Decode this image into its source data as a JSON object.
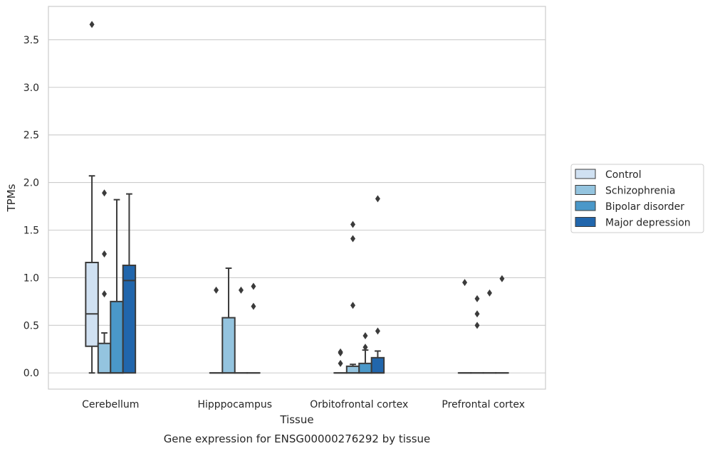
{
  "chart_data": {
    "type": "box",
    "caption": "Gene expression for ENSG00000276292 by tissue",
    "xlabel": "Tissue",
    "ylabel": "TPMs",
    "ylim": [
      -0.17,
      3.85
    ],
    "yticks": [
      "0.0",
      "0.5",
      "1.0",
      "1.5",
      "2.0",
      "2.5",
      "3.0",
      "3.5"
    ],
    "grid": "horizontal",
    "legend_position": "right",
    "categories": [
      "Cerebellum",
      "Hipppocampus",
      "Orbitofrontal cortex",
      "Prefrontal cortex"
    ],
    "series": [
      {
        "name": "Control",
        "color": "#d0e1f2",
        "boxes": [
          {
            "whislo": 0.0,
            "q1": 0.28,
            "med": 0.62,
            "q3": 1.16,
            "whishi": 2.07,
            "fliers": [
              3.66
            ]
          },
          {
            "whislo": 0.0,
            "q1": 0.0,
            "med": 0.0,
            "q3": 0.0,
            "whishi": 0.0,
            "fliers": [
              0.87
            ]
          },
          {
            "whislo": 0.0,
            "q1": 0.0,
            "med": 0.0,
            "q3": 0.0,
            "whishi": 0.0,
            "fliers": [
              0.1,
              0.21,
              0.22
            ]
          },
          {
            "whislo": 0.0,
            "q1": 0.0,
            "med": 0.0,
            "q3": 0.0,
            "whishi": 0.0,
            "fliers": [
              0.95
            ]
          }
        ]
      },
      {
        "name": "Schizophrenia",
        "color": "#94c4df",
        "boxes": [
          {
            "whislo": 0.0,
            "q1": 0.0,
            "med": 0.0,
            "q3": 0.31,
            "whishi": 0.42,
            "fliers": [
              0.83,
              1.25,
              1.89
            ]
          },
          {
            "whislo": 0.0,
            "q1": 0.0,
            "med": 0.0,
            "q3": 0.58,
            "whishi": 1.1,
            "fliers": []
          },
          {
            "whislo": 0.0,
            "q1": 0.0,
            "med": 0.0,
            "q3": 0.07,
            "whishi": 0.09,
            "fliers": [
              0.71,
              1.41,
              1.56
            ]
          },
          {
            "whislo": 0.0,
            "q1": 0.0,
            "med": 0.0,
            "q3": 0.0,
            "whishi": 0.0,
            "fliers": [
              0.5,
              0.62,
              0.78
            ]
          }
        ]
      },
      {
        "name": "Bipolar disorder",
        "color": "#4a98c9",
        "boxes": [
          {
            "whislo": 0.0,
            "q1": 0.0,
            "med": 0.0,
            "q3": 0.75,
            "whishi": 1.82,
            "fliers": []
          },
          {
            "whislo": 0.0,
            "q1": 0.0,
            "med": 0.0,
            "q3": 0.0,
            "whishi": 0.0,
            "fliers": [
              0.87
            ]
          },
          {
            "whislo": 0.0,
            "q1": 0.0,
            "med": 0.0,
            "q3": 0.1,
            "whishi": 0.24,
            "fliers": [
              0.27,
              0.39
            ]
          },
          {
            "whislo": 0.0,
            "q1": 0.0,
            "med": 0.0,
            "q3": 0.0,
            "whishi": 0.0,
            "fliers": [
              0.84
            ]
          }
        ]
      },
      {
        "name": "Major depression",
        "color": "#2166ac",
        "boxes": [
          {
            "whislo": 0.0,
            "q1": 0.0,
            "med": 0.97,
            "q3": 1.13,
            "whishi": 1.88,
            "fliers": []
          },
          {
            "whislo": 0.0,
            "q1": 0.0,
            "med": 0.0,
            "q3": 0.0,
            "whishi": 0.0,
            "fliers": [
              0.7,
              0.91
            ]
          },
          {
            "whislo": 0.0,
            "q1": 0.0,
            "med": 0.0,
            "q3": 0.16,
            "whishi": 0.23,
            "fliers": [
              0.44,
              1.83
            ]
          },
          {
            "whislo": 0.0,
            "q1": 0.0,
            "med": 0.0,
            "q3": 0.0,
            "whishi": 0.0,
            "fliers": [
              0.99
            ]
          }
        ]
      }
    ]
  },
  "style": {
    "line_color": "#3b3b3b",
    "grid_color": "#cccccc",
    "frame_color": "#cccccc"
  }
}
